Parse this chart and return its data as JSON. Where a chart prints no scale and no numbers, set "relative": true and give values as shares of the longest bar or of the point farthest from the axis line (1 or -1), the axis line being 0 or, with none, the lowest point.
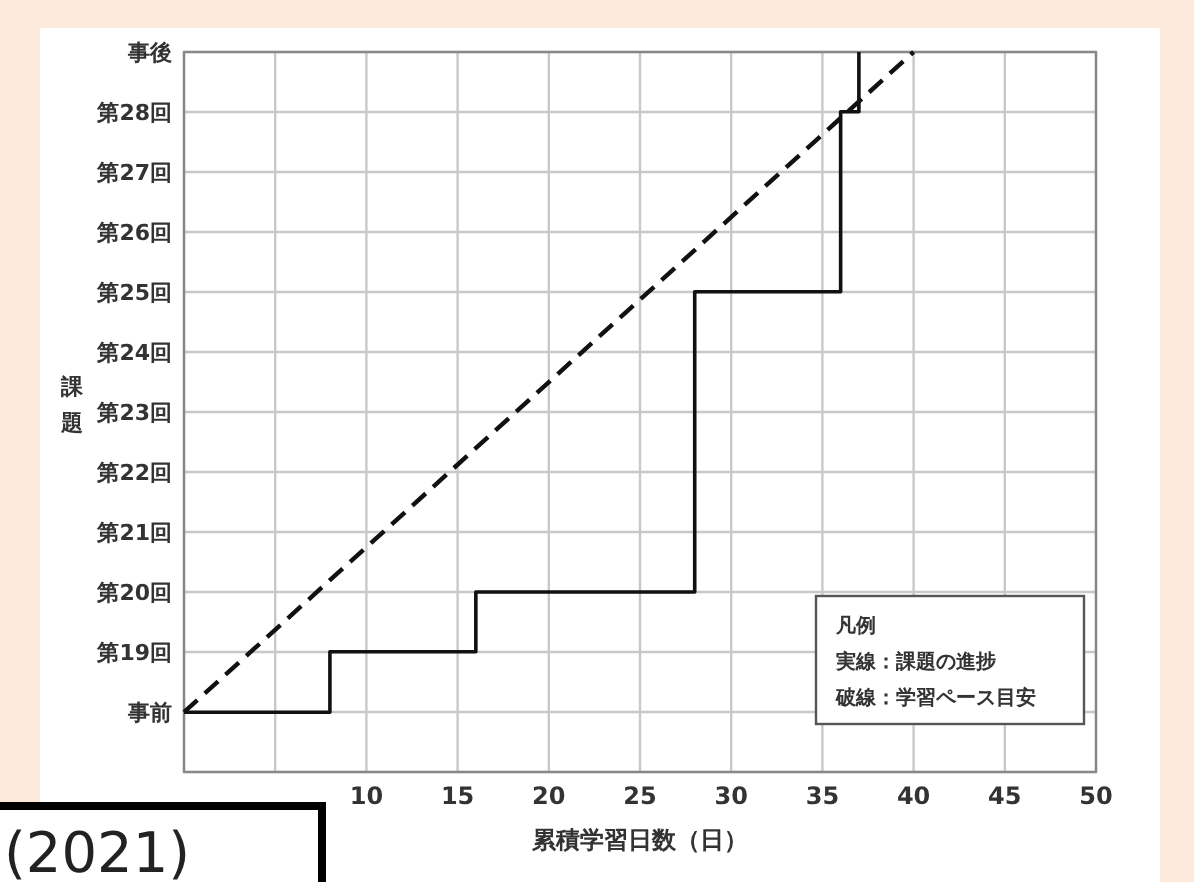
{
  "chart_data": {
    "type": "line",
    "relative": true,
    "ylabel": "課題",
    "xlabel": "累積学習日数（日）",
    "xlim": [
      0,
      50
    ],
    "xticks": [
      {
        "value": 0,
        "label": null
      },
      {
        "value": 5,
        "label": null
      },
      10,
      15,
      20,
      25,
      30,
      35,
      40,
      45,
      50
    ],
    "y_categories": [
      "事後",
      "第28回",
      "第27回",
      "第26回",
      "第25回",
      "第24回",
      "第23回",
      "第22回",
      "第21回",
      "第20回",
      "第19回",
      "事前",
      null
    ],
    "grid": true,
    "series": [
      {
        "type": "step",
        "color": "#111111",
        "line_style": "solid",
        "x": [
          0,
          8,
          16,
          28,
          36,
          37
        ],
        "values": [
          0.083,
          0.167,
          0.25,
          0.667,
          0.917,
          1
        ]
      },
      {
        "color": "#111111",
        "line_style": "dashed",
        "x": [
          0,
          40
        ],
        "values": [
          0.083,
          1
        ]
      }
    ],
    "annotations": [
      "凡例",
      "実線：課題の進捗",
      "破線：学習ペース目安",
      "(2021)"
    ]
  }
}
